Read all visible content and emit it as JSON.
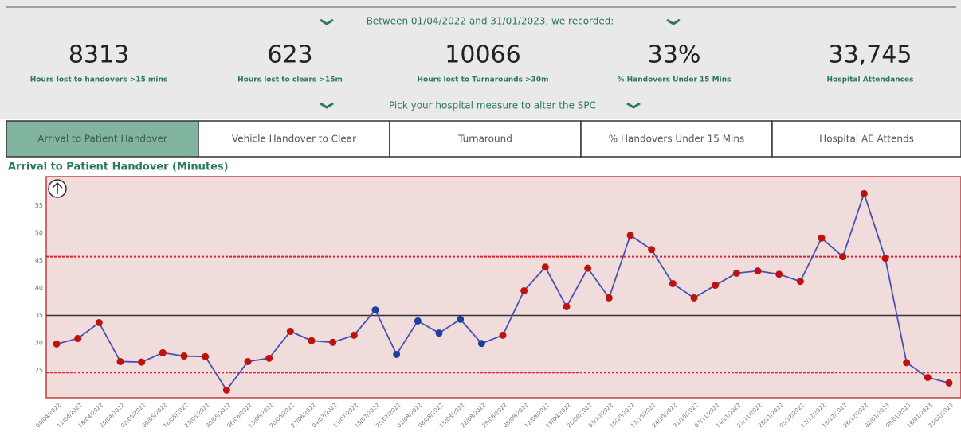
{
  "header": {
    "period": "Between 01/04/2022 and 31/01/2023, we recorded:",
    "kpis": [
      {
        "value": "8313",
        "label": "Hours lost to handovers >15 mins"
      },
      {
        "value": "623",
        "label": "Hours lost to clears >15m"
      },
      {
        "value": "10066",
        "label": "Hours lost to Turnarounds >30m"
      },
      {
        "value": "33%",
        "label": "% Handovers Under 15 Mins"
      },
      {
        "value": "33,745",
        "label": "Hospital Attendances"
      }
    ],
    "prompt": "Pick your hospital measure to alter the SPC"
  },
  "tabs": [
    "Arrival to Patient Handover",
    "Vehicle Handover to Clear",
    "Turnaround",
    "% Handovers Under 15 Mins",
    "Hospital AE Attends"
  ],
  "chart_data": {
    "type": "line",
    "title": "Arrival to Patient Handover (Minutes)",
    "categories": [
      "04/04/2022",
      "11/04/2022",
      "18/04/2022",
      "25/04/2022",
      "02/05/2022",
      "09/05/2022",
      "16/05/2022",
      "23/05/2022",
      "30/05/2022",
      "06/06/2022",
      "13/06/2022",
      "20/06/2022",
      "27/06/2022",
      "04/07/2022",
      "11/07/2022",
      "18/07/2022",
      "25/07/2022",
      "01/08/2022",
      "08/08/2022",
      "15/08/2022",
      "22/08/2022",
      "29/08/2022",
      "05/09/2022",
      "12/09/2022",
      "19/09/2022",
      "26/09/2022",
      "03/10/2022",
      "10/10/2022",
      "17/10/2022",
      "24/10/2022",
      "31/10/2022",
      "07/11/2022",
      "14/11/2022",
      "21/11/2022",
      "28/11/2022",
      "05/12/2022",
      "12/12/2022",
      "19/12/2022",
      "26/12/2022",
      "02/01/2023",
      "09/01/2023",
      "16/01/2023",
      "23/01/2023"
    ],
    "values": [
      29.8,
      30.8,
      33.7,
      26.6,
      26.5,
      28.2,
      27.6,
      27.5,
      21.4,
      26.6,
      27.2,
      32.1,
      30.4,
      30.1,
      31.4,
      36.0,
      27.9,
      34.0,
      31.8,
      34.3,
      29.9,
      31.4,
      39.5,
      43.8,
      36.6,
      43.6,
      38.2,
      49.6,
      47.0,
      40.8,
      38.2,
      40.5,
      42.7,
      43.1,
      42.5,
      41.2,
      49.1,
      45.7,
      57.2,
      45.4,
      26.4,
      23.7,
      22.7
    ],
    "color": "#4a50b4",
    "point_colors": [
      "#c0120c",
      "#c0120c",
      "#c0120c",
      "#c0120c",
      "#c0120c",
      "#c0120c",
      "#c0120c",
      "#c0120c",
      "#c0120c",
      "#c0120c",
      "#c0120c",
      "#c0120c",
      "#c0120c",
      "#c0120c",
      "#c0120c",
      "#1d3f9e",
      "#1d3f9e",
      "#1d3f9e",
      "#1d3f9e",
      "#1d3f9e",
      "#1d3f9e",
      "#c0120c",
      "#c0120c",
      "#c0120c",
      "#c0120c",
      "#c0120c",
      "#c0120c",
      "#c0120c",
      "#c0120c",
      "#c0120c",
      "#c0120c",
      "#c0120c",
      "#c0120c",
      "#c0120c",
      "#c0120c",
      "#c0120c",
      "#c0120c",
      "#c0120c",
      "#c0120c",
      "#c0120c",
      "#c0120c",
      "#c0120c",
      "#c0120c"
    ],
    "mean": 35,
    "upper_limit": 45.7,
    "lower_limit": 24.6,
    "ylim": [
      20,
      60
    ],
    "yticks": [
      25,
      30,
      35,
      40,
      45,
      50,
      55
    ]
  }
}
